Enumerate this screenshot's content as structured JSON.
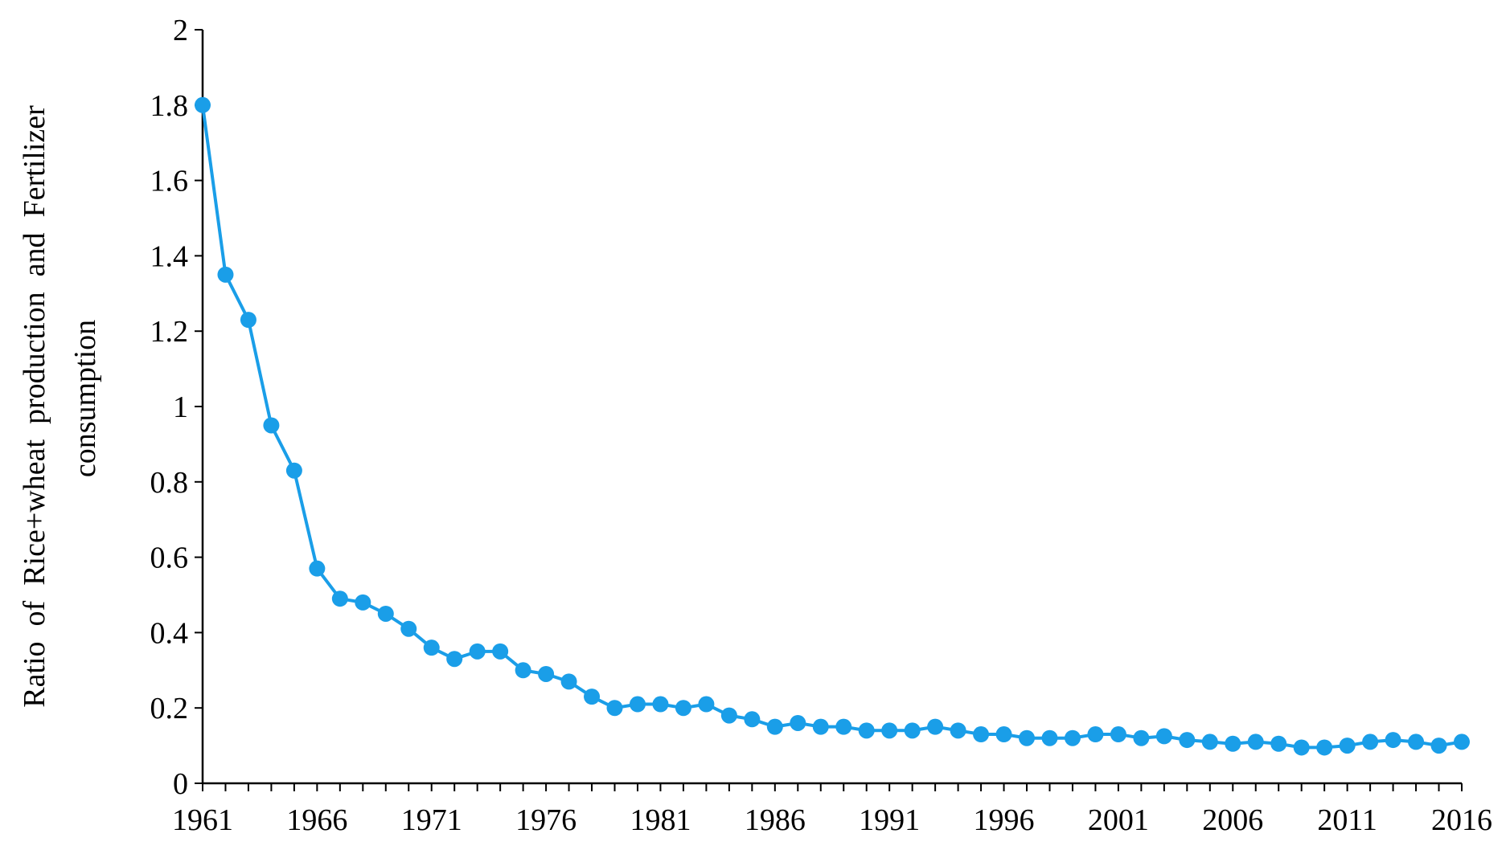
{
  "chart_data": {
    "type": "line",
    "ylabel_lines": [
      "Ratio  of  Rice+wheat  production  and  Fertilizer",
      "consumption"
    ],
    "xlabel": "",
    "title": "",
    "ylim": [
      0,
      2
    ],
    "yticks": [
      0,
      0.2,
      0.4,
      0.6,
      0.8,
      1,
      1.2,
      1.4,
      1.6,
      1.8,
      2
    ],
    "ytick_labels": [
      "0",
      "0.2",
      "0.4",
      "0.6",
      "0.8",
      "1",
      "1.2",
      "1.4",
      "1.6",
      "1.8",
      "2"
    ],
    "xlim": [
      1961,
      2016
    ],
    "xtick_labels": [
      "1961",
      "1966",
      "1971",
      "1976",
      "1981",
      "1986",
      "1991",
      "1996",
      "2001",
      "2006",
      "2011",
      "2016"
    ],
    "grid": false,
    "legend": "none",
    "series": [
      {
        "color": "#1a9ee8",
        "x": [
          1961,
          1962,
          1963,
          1964,
          1965,
          1966,
          1967,
          1968,
          1969,
          1970,
          1971,
          1972,
          1973,
          1974,
          1975,
          1976,
          1977,
          1978,
          1979,
          1980,
          1981,
          1982,
          1983,
          1984,
          1985,
          1986,
          1987,
          1988,
          1989,
          1990,
          1991,
          1992,
          1993,
          1994,
          1995,
          1996,
          1997,
          1998,
          1999,
          2000,
          2001,
          2002,
          2003,
          2004,
          2005,
          2006,
          2007,
          2008,
          2009,
          2010,
          2011,
          2012,
          2013,
          2014,
          2015,
          2016
        ],
        "values": [
          1.8,
          1.35,
          1.23,
          0.95,
          0.83,
          0.57,
          0.49,
          0.48,
          0.45,
          0.41,
          0.36,
          0.33,
          0.35,
          0.35,
          0.3,
          0.29,
          0.27,
          0.23,
          0.2,
          0.21,
          0.21,
          0.2,
          0.21,
          0.18,
          0.17,
          0.15,
          0.16,
          0.15,
          0.15,
          0.14,
          0.14,
          0.14,
          0.15,
          0.14,
          0.13,
          0.13,
          0.12,
          0.12,
          0.12,
          0.13,
          0.13,
          0.12,
          0.125,
          0.115,
          0.11,
          0.105,
          0.11,
          0.105,
          0.095,
          0.095,
          0.1,
          0.11,
          0.115,
          0.11,
          0.1,
          0.11
        ]
      }
    ]
  }
}
